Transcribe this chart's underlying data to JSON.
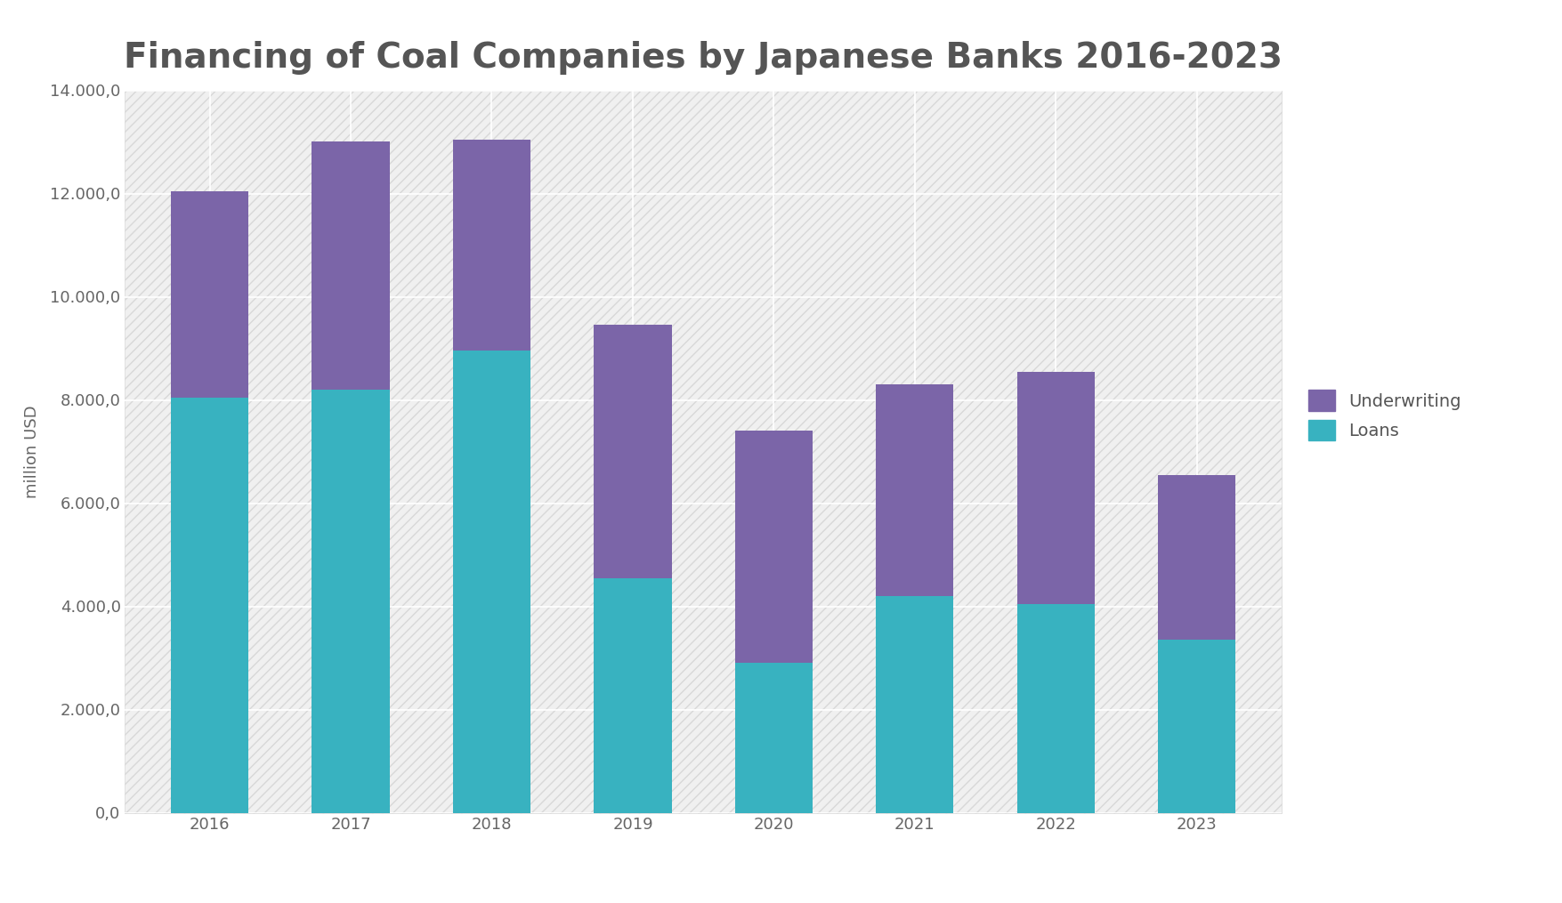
{
  "title": "Financing of Coal Companies by Japanese Banks 2016-2023",
  "years": [
    "2016",
    "2017",
    "2018",
    "2019",
    "2020",
    "2021",
    "2022",
    "2023"
  ],
  "loans": [
    8050,
    8200,
    8950,
    4550,
    2900,
    4200,
    4050,
    3350
  ],
  "underwriting": [
    4000,
    4800,
    4100,
    4900,
    4500,
    4100,
    4500,
    3200
  ],
  "loans_color": "#38B2C0",
  "underwriting_color": "#7B65A8",
  "ylabel": "million USD",
  "ylim": [
    0,
    14000
  ],
  "ytick_step": 2000,
  "background_color": "#ffffff",
  "plot_bg_color": "#f0f0f0",
  "hatch_color": "#d8d8d8",
  "grid_color": "#ffffff",
  "title_fontsize": 28,
  "axis_label_fontsize": 13,
  "tick_fontsize": 13,
  "legend_fontsize": 14,
  "bar_width": 0.55
}
